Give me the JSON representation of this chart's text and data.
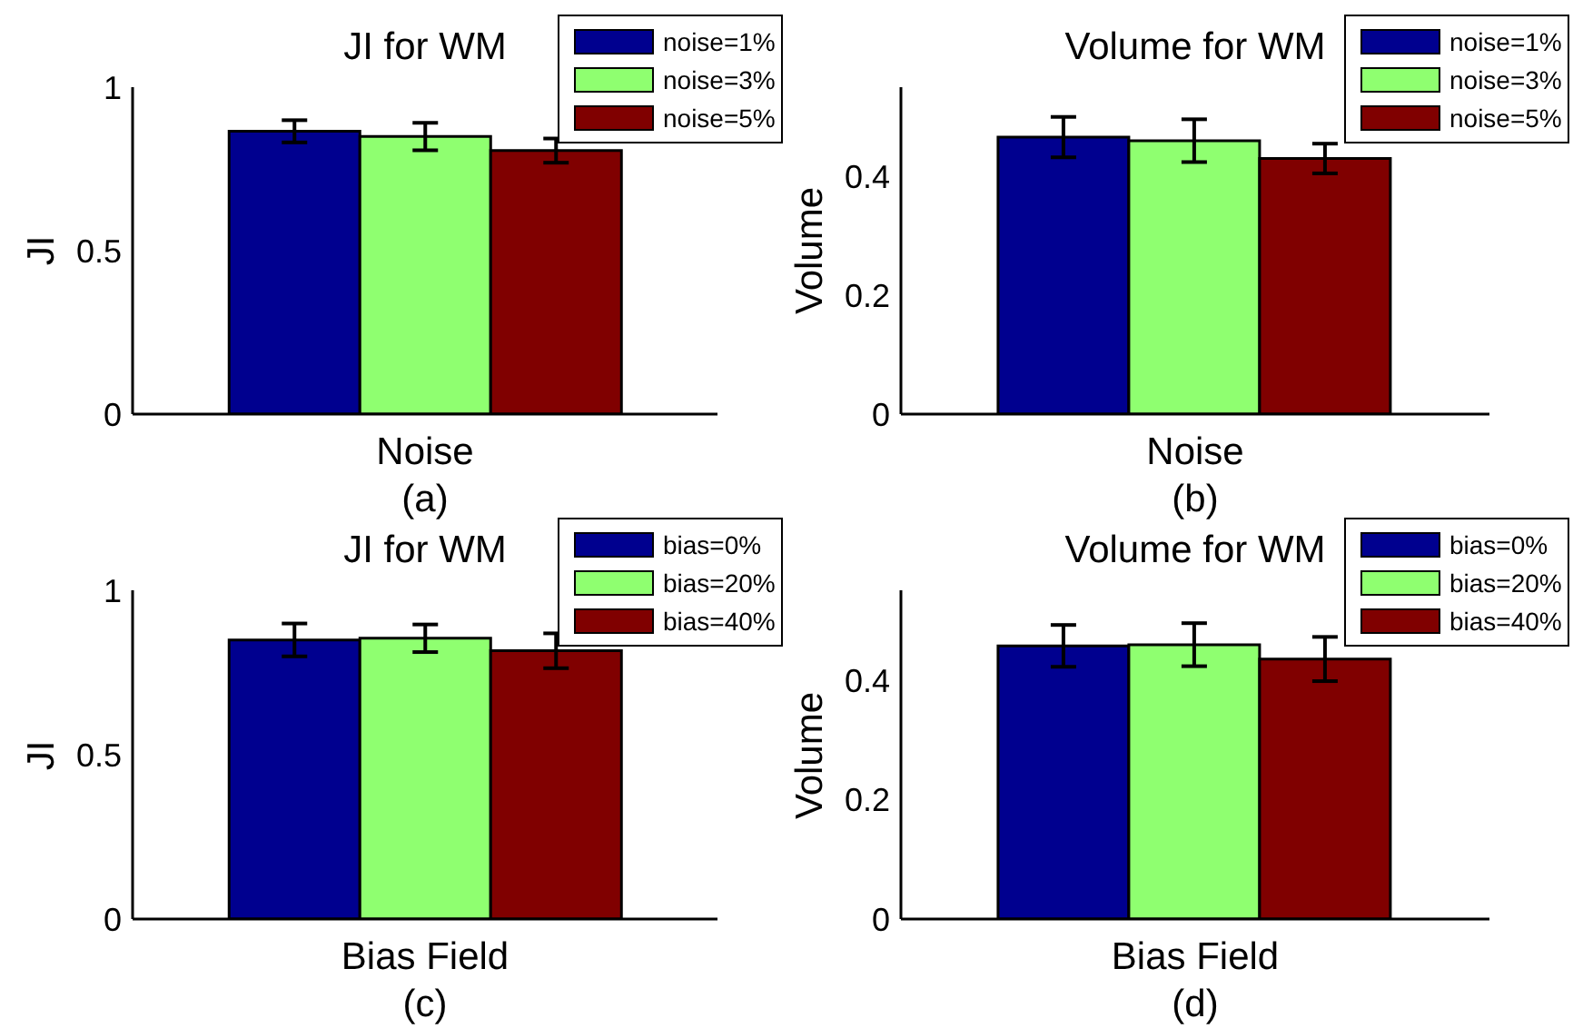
{
  "chart_data": [
    {
      "type": "bar",
      "title": "JI for WM",
      "xlabel": "Noise",
      "ylabel": "JI",
      "categories": [
        null
      ],
      "series": [
        {
          "name": "noise=1%",
          "color": "#00008f",
          "values": [
            0.865
          ],
          "errors": [
            0.034
          ]
        },
        {
          "name": "noise=3%",
          "color": "#8fff70",
          "values": [
            0.849
          ],
          "errors": [
            0.042
          ]
        },
        {
          "name": "noise=5%",
          "color": "#800000",
          "values": [
            0.806
          ],
          "errors": [
            0.037
          ]
        }
      ],
      "ylim": [
        0,
        1
      ],
      "yticks": [
        0,
        0.5,
        1
      ],
      "legend": "top right",
      "annotations": [
        "(a)"
      ]
    },
    {
      "type": "bar",
      "title": "Volume for WM",
      "xlabel": "Noise",
      "ylabel": "Volume",
      "categories": [
        null
      ],
      "series": [
        {
          "name": "noise=1%",
          "color": "#00008f",
          "values": [
            0.466
          ],
          "errors": [
            0.034
          ]
        },
        {
          "name": "noise=3%",
          "color": "#8fff70",
          "values": [
            0.46
          ],
          "errors": [
            0.036
          ]
        },
        {
          "name": "noise=5%",
          "color": "#800000",
          "values": [
            0.43
          ],
          "errors": [
            0.025
          ]
        }
      ],
      "ylim": [
        0,
        0.55
      ],
      "yticks": [
        0,
        0.2,
        0.4
      ],
      "legend": "top right",
      "annotations": [
        "(b)"
      ]
    },
    {
      "type": "bar",
      "title": "JI for WM",
      "xlabel": "Bias Field",
      "ylabel": "JI",
      "categories": [
        null
      ],
      "series": [
        {
          "name": "bias=0%",
          "color": "#00008f",
          "values": [
            0.849
          ],
          "errors": [
            0.05
          ]
        },
        {
          "name": "bias=20%",
          "color": "#8fff70",
          "values": [
            0.854
          ],
          "errors": [
            0.042
          ]
        },
        {
          "name": "bias=40%",
          "color": "#800000",
          "values": [
            0.816
          ],
          "errors": [
            0.053
          ]
        }
      ],
      "ylim": [
        0,
        1
      ],
      "yticks": [
        0,
        0.5,
        1
      ],
      "legend": "top right",
      "annotations": [
        "(c)"
      ]
    },
    {
      "type": "bar",
      "title": "Volume for WM",
      "xlabel": "Bias Field",
      "ylabel": "Volume",
      "categories": [
        null
      ],
      "series": [
        {
          "name": "bias=0%",
          "color": "#00008f",
          "values": [
            0.457
          ],
          "errors": [
            0.035
          ]
        },
        {
          "name": "bias=20%",
          "color": "#8fff70",
          "values": [
            0.459
          ],
          "errors": [
            0.036
          ]
        },
        {
          "name": "bias=40%",
          "color": "#800000",
          "values": [
            0.435
          ],
          "errors": [
            0.037
          ]
        }
      ],
      "ylim": [
        0,
        0.55
      ],
      "yticks": [
        0,
        0.2,
        0.4
      ],
      "legend": "top right",
      "annotations": [
        "(d)"
      ]
    }
  ]
}
